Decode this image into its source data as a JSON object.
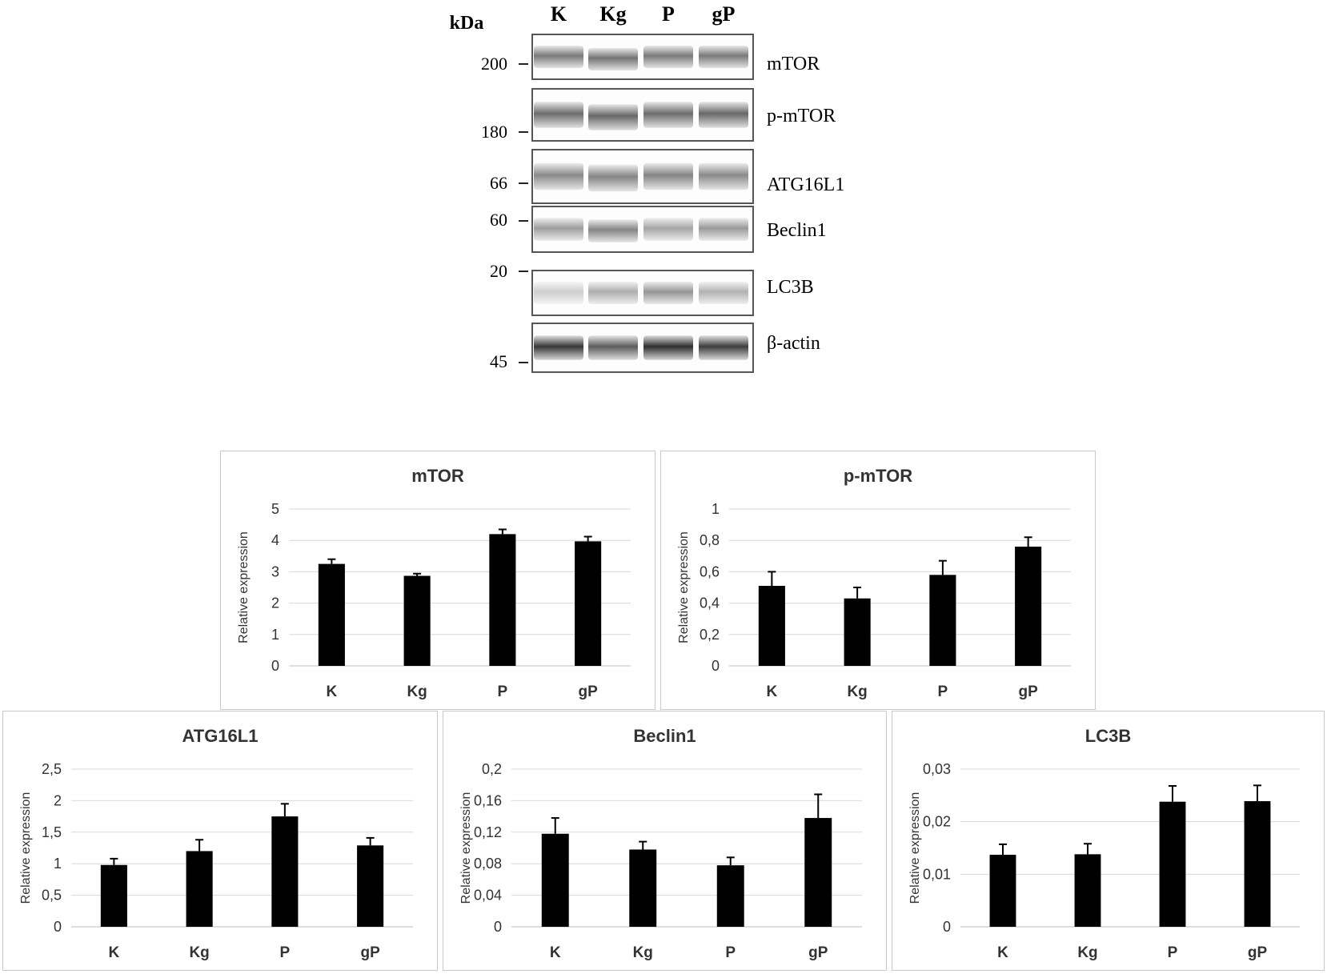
{
  "blot": {
    "kda_label": "kDa",
    "lanes": [
      "K",
      "Kg",
      "P",
      "gP"
    ],
    "markers": [
      "200",
      "180",
      "66",
      "60",
      "20",
      "45"
    ],
    "proteins": [
      {
        "name": "mTOR",
        "intensity": [
          0.55,
          0.58,
          0.55,
          0.55
        ],
        "offset": [
          0,
          6,
          0,
          0
        ]
      },
      {
        "name": "p-mTOR",
        "intensity": [
          0.62,
          0.64,
          0.62,
          0.64
        ],
        "offset": [
          0,
          6,
          0,
          0
        ]
      },
      {
        "name": "ATG16L1",
        "intensity": [
          0.48,
          0.5,
          0.5,
          0.48
        ],
        "offset": [
          0,
          4,
          0,
          0
        ]
      },
      {
        "name": "Beclin1",
        "intensity": [
          0.38,
          0.5,
          0.34,
          0.4
        ],
        "offset": [
          0,
          4,
          0,
          0
        ]
      },
      {
        "name": "LC3B",
        "intensity": [
          0.14,
          0.3,
          0.42,
          0.28
        ],
        "offset": [
          0,
          0,
          0,
          0
        ]
      },
      {
        "name": "β-actin",
        "intensity": [
          0.88,
          0.7,
          0.92,
          0.85
        ],
        "offset": [
          0,
          0,
          0,
          0
        ]
      }
    ]
  },
  "chart_data": [
    {
      "type": "bar",
      "title": "mTOR",
      "ylabel": "Relative expression",
      "categories": [
        "K",
        "Kg",
        "P",
        "gP"
      ],
      "values": [
        3.25,
        2.87,
        4.2,
        3.97
      ],
      "errors": [
        0.15,
        0.07,
        0.15,
        0.15
      ],
      "ylim": [
        0,
        5
      ],
      "yticks": [
        "0",
        "1",
        "2",
        "3",
        "4",
        "5"
      ],
      "ytick_values": [
        0,
        1,
        2,
        3,
        4,
        5
      ],
      "grid": true
    },
    {
      "type": "bar",
      "title": "p-mTOR",
      "ylabel": "Relative expression",
      "categories": [
        "K",
        "Kg",
        "P",
        "gP"
      ],
      "values": [
        0.51,
        0.43,
        0.58,
        0.76
      ],
      "errors": [
        0.09,
        0.07,
        0.09,
        0.06
      ],
      "ylim": [
        0,
        1
      ],
      "yticks": [
        "0",
        "0,2",
        "0,4",
        "0,6",
        "0,8",
        "1"
      ],
      "ytick_values": [
        0,
        0.2,
        0.4,
        0.6,
        0.8,
        1
      ],
      "grid": true
    },
    {
      "type": "bar",
      "title": "ATG16L1",
      "ylabel": "Relative expression",
      "categories": [
        "K",
        "Kg",
        "P",
        "gP"
      ],
      "values": [
        0.98,
        1.2,
        1.75,
        1.29
      ],
      "errors": [
        0.1,
        0.18,
        0.2,
        0.12
      ],
      "ylim": [
        0,
        2.5
      ],
      "yticks": [
        "0",
        "0,5",
        "1",
        "1,5",
        "2",
        "2,5"
      ],
      "ytick_values": [
        0,
        0.5,
        1,
        1.5,
        2,
        2.5
      ],
      "grid": true
    },
    {
      "type": "bar",
      "title": "Beclin1",
      "ylabel": "Relative expression",
      "categories": [
        "K",
        "Kg",
        "P",
        "gP"
      ],
      "values": [
        0.118,
        0.098,
        0.078,
        0.138
      ],
      "errors": [
        0.02,
        0.01,
        0.01,
        0.03
      ],
      "ylim": [
        0,
        0.2
      ],
      "yticks": [
        "0",
        "0,04",
        "0,08",
        "0,12",
        "0,16",
        "0,2"
      ],
      "ytick_values": [
        0,
        0.04,
        0.08,
        0.12,
        0.16,
        0.2
      ],
      "grid": true
    },
    {
      "type": "bar",
      "title": "LC3B",
      "ylabel": "Relative expression",
      "categories": [
        "K",
        "Kg",
        "P",
        "gP"
      ],
      "values": [
        0.0137,
        0.0138,
        0.0238,
        0.0239
      ],
      "errors": [
        0.002,
        0.002,
        0.003,
        0.003
      ],
      "ylim": [
        0,
        0.03
      ],
      "yticks": [
        "0",
        "0,01",
        "0,02",
        "0,03"
      ],
      "ytick_values": [
        0,
        0.01,
        0.02,
        0.03
      ],
      "grid": true
    }
  ]
}
